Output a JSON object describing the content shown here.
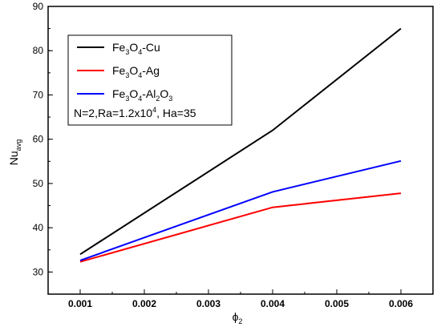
{
  "chart_data": {
    "type": "line",
    "x": [
      0.001,
      0.004,
      0.006
    ],
    "series": [
      {
        "name": "Fe3O4-Cu",
        "color": "#000000",
        "values": [
          34.0,
          62.0,
          85.0
        ]
      },
      {
        "name": "Fe3O4-Ag",
        "color": "#ff0000",
        "values": [
          32.3,
          44.6,
          47.8
        ]
      },
      {
        "name": "Fe3O4-Al2O3",
        "color": "#0000ff",
        "values": [
          32.6,
          48.1,
          55.1
        ]
      }
    ],
    "xlabel": "ϕ2",
    "ylabel": "Nuavg",
    "xlim": [
      0.0005,
      0.0065
    ],
    "ylim": [
      25,
      90
    ],
    "xticks": [
      "0.001",
      "0.002",
      "0.003",
      "0.004",
      "0.005",
      "0.006"
    ],
    "yticks": [
      "30",
      "40",
      "50",
      "60",
      "70",
      "80",
      "90"
    ],
    "legend_position": "top-left",
    "annotation": "N=2,Ra=1.2x104, Ha=35",
    "grid": false
  }
}
